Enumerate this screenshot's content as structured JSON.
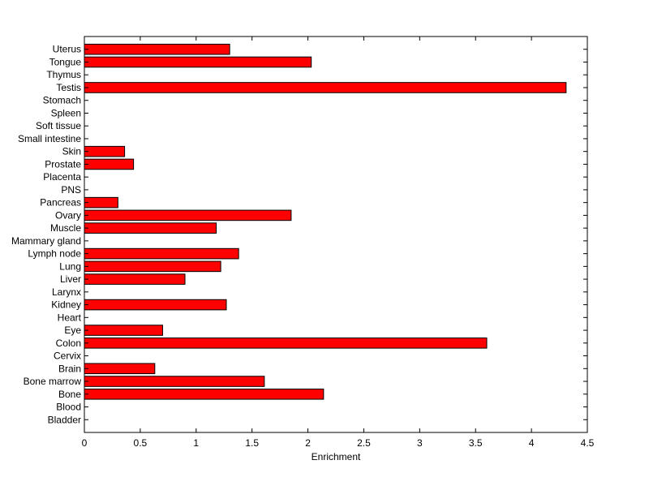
{
  "chart_data": {
    "type": "bar",
    "orientation": "horizontal",
    "title": "",
    "xlabel": "Enrichment",
    "ylabel": "",
    "xlim": [
      0,
      4.5
    ],
    "xticks": [
      "0",
      "0.5",
      "1",
      "1.5",
      "2",
      "2.5",
      "3",
      "3.5",
      "4",
      "4.5"
    ],
    "grid": false,
    "bar_color": "#ff0000",
    "bar_edge_color": "#000000",
    "categories": [
      "Bladder",
      "Blood",
      "Bone",
      "Bone marrow",
      "Brain",
      "Cervix",
      "Colon",
      "Eye",
      "Heart",
      "Kidney",
      "Larynx",
      "Liver",
      "Lung",
      "Lymph node",
      "Mammary gland",
      "Muscle",
      "Ovary",
      "Pancreas",
      "PNS",
      "Placenta",
      "Prostate",
      "Skin",
      "Small intestine",
      "Soft tissue",
      "Spleen",
      "Stomach",
      "Testis",
      "Thymus",
      "Tongue",
      "Uterus"
    ],
    "values": [
      0,
      0,
      2.14,
      1.61,
      0.63,
      0,
      3.6,
      0.7,
      0,
      1.27,
      0,
      0.9,
      1.22,
      1.38,
      0,
      1.18,
      1.85,
      0.3,
      0,
      0,
      0.44,
      0.36,
      0,
      0,
      0,
      0,
      4.31,
      0,
      2.03,
      1.3
    ]
  }
}
